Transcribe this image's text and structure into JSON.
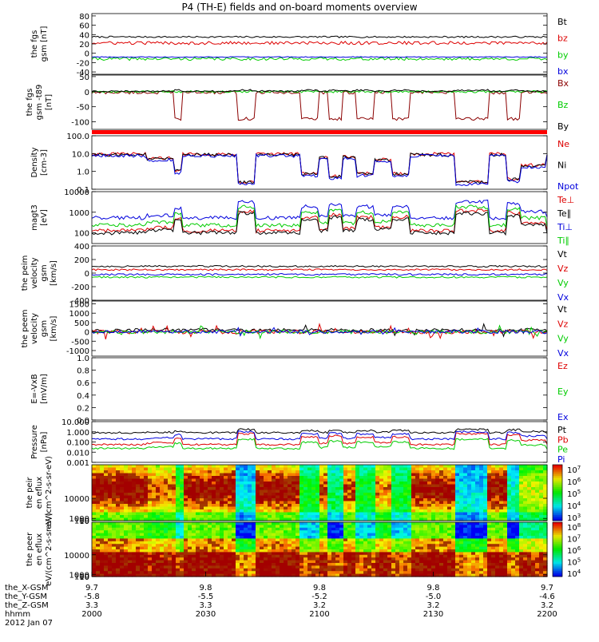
{
  "title": "P4 (TH-E) fields and on-board moments overview",
  "date": "2012 Jan 07",
  "colors": {
    "black": "#000000",
    "red": "#dd0000",
    "green": "#00cc00",
    "blue": "#0000dd",
    "darkred": "#8b0000"
  },
  "chart_data": [
    {
      "type": "line",
      "ylabel": "the fgs gsm [nT]",
      "ylim": [
        -45,
        85
      ],
      "yticks": [
        80,
        60,
        40,
        20,
        0,
        -20,
        -40
      ],
      "series": [
        {
          "name": "Bt",
          "color": "#000000",
          "level": 35,
          "lo": 18,
          "hi": 60
        },
        {
          "name": "bz",
          "color": "#dd0000",
          "level": 22,
          "lo": -35,
          "hi": 50
        },
        {
          "name": "by",
          "color": "#00cc00",
          "level": -12,
          "lo": -35,
          "hi": 45
        },
        {
          "name": "bx",
          "color": "#0000dd",
          "level": -8,
          "lo": -15,
          "hi": 5
        }
      ]
    },
    {
      "type": "line",
      "ylabel": "the fgs gsm -t89 [nT]",
      "ylim": [
        -125,
        55
      ],
      "yticks": [
        50,
        0,
        -50,
        -100
      ],
      "series": [
        {
          "name": "Bx",
          "color": "#8b0000",
          "level": -10,
          "lo": -100,
          "hi": 25
        },
        {
          "name": "Bz",
          "color": "#00cc00",
          "level": 0,
          "lo": -45,
          "hi": 40
        },
        {
          "name": "By",
          "color": "#000000",
          "level": 5,
          "lo": -30,
          "hi": 35
        }
      ]
    },
    {
      "type": "line",
      "log": true,
      "ylabel": "Density [cm-3]",
      "ylim": [
        0.1,
        100
      ],
      "yticks": [
        100.0,
        10.0,
        1.0,
        0.1
      ],
      "ytick_labels": [
        "100.0",
        "10.0",
        "1.0",
        "0.1"
      ],
      "series": [
        {
          "name": "Ne",
          "color": "#dd0000",
          "level": 10,
          "lo": 0.2,
          "hi": 25
        },
        {
          "name": "Ni",
          "color": "#000000",
          "level": 9,
          "lo": 0.2,
          "hi": 22
        },
        {
          "name": "Npot",
          "color": "#0000dd",
          "level": 8,
          "lo": 0.15,
          "hi": 20
        }
      ]
    },
    {
      "type": "line",
      "log": true,
      "ylabel": "magt3 [eV]",
      "ylim": [
        30,
        10000
      ],
      "yticks": [
        10000,
        1000,
        100
      ],
      "ytick_labels": [
        "10000",
        "1000",
        "100"
      ],
      "series": [
        {
          "name": "Te⊥",
          "color": "#dd0000",
          "level": 80,
          "lo": 50,
          "hi": 2000
        },
        {
          "name": "Te∥",
          "color": "#000000",
          "level": 60,
          "lo": 40,
          "hi": 1500
        },
        {
          "name": "Ti⊥",
          "color": "#0000dd",
          "level": 400,
          "lo": 250,
          "hi": 5000
        },
        {
          "name": "Ti∥",
          "color": "#00cc00",
          "level": 150,
          "lo": 100,
          "hi": 3000
        }
      ]
    },
    {
      "type": "line",
      "ylabel": "the peim velocity gsm [km/s]",
      "ylim": [
        -400,
        400
      ],
      "yticks": [
        400,
        200,
        0,
        -200,
        -400
      ],
      "series": [
        {
          "name": "Vt",
          "color": "#000000",
          "level": 100,
          "lo": 30,
          "hi": 350
        },
        {
          "name": "Vz",
          "color": "#dd0000",
          "level": 50,
          "lo": -100,
          "hi": 200
        },
        {
          "name": "Vy",
          "color": "#00cc00",
          "level": -60,
          "lo": -200,
          "hi": 100
        },
        {
          "name": "Vx",
          "color": "#0000dd",
          "level": -20,
          "lo": -200,
          "hi": 150
        }
      ]
    },
    {
      "type": "line",
      "ylabel": "the peem velocity gsm [km/s]",
      "ylim": [
        -1300,
        1650
      ],
      "yticks": [
        1500,
        1000,
        500,
        0,
        -500,
        -1000
      ],
      "series": [
        {
          "name": "Vt",
          "color": "#000000",
          "level": 100,
          "lo": 0,
          "hi": 1500
        },
        {
          "name": "Vz",
          "color": "#dd0000",
          "level": 0,
          "lo": -1000,
          "hi": 800
        },
        {
          "name": "Vy",
          "color": "#00cc00",
          "level": 0,
          "lo": -1000,
          "hi": 600
        },
        {
          "name": "Vx",
          "color": "#0000dd",
          "level": 0,
          "lo": -800,
          "hi": 600
        }
      ]
    },
    {
      "type": "line",
      "ylabel": "E=-VxB [mV/m]",
      "ylim": [
        0,
        1.0
      ],
      "yticks": [
        1.0,
        0.8,
        0.6,
        0.4,
        0.2,
        0.0
      ],
      "ytick_labels": [
        "1.0",
        "0.8",
        "0.6",
        "0.4",
        "0.2",
        "0.0"
      ],
      "series": [
        {
          "name": "Ez",
          "color": "#dd0000"
        },
        {
          "name": "Ey",
          "color": "#00cc00"
        },
        {
          "name": "Ex",
          "color": "#0000dd"
        }
      ]
    },
    {
      "type": "line",
      "log": true,
      "ylabel": "Pressure [nPa]",
      "ylim": [
        0.001,
        10
      ],
      "yticks": [
        10,
        1,
        0.1,
        0.01,
        0.001
      ],
      "ytick_labels": [
        "10.000",
        "1.000",
        "0.100",
        "0.010",
        "0.001"
      ],
      "series": [
        {
          "name": "Pt",
          "color": "#000000",
          "level": 1.0,
          "lo": 0.6,
          "hi": 2.0
        },
        {
          "name": "Pb",
          "color": "#dd0000",
          "level": 0.5,
          "lo": 0.02,
          "hi": 1.2
        },
        {
          "name": "Pe",
          "color": "#00cc00",
          "level": 0.05,
          "lo": 0.01,
          "hi": 0.3
        },
        {
          "name": "Pi",
          "color": "#0000dd",
          "level": 0.3,
          "lo": 0.1,
          "hi": 1.5
        }
      ]
    },
    {
      "type": "heatmap",
      "ylabel": "the peir en eflux eV/(cm^2-s-sr-eV)",
      "ylim": [
        8,
        25000
      ],
      "yticks": [
        10000,
        1000,
        100,
        10
      ],
      "ytick_labels": [
        "10000",
        "1000",
        "100",
        "10"
      ],
      "colorbar": {
        "min_exp": 3,
        "max_exp": 7
      }
    },
    {
      "type": "heatmap",
      "ylabel": "the peer en eflux eV/(cm^2-s-sr-eV)",
      "ylim": [
        8,
        25000
      ],
      "yticks": [
        10000,
        1000,
        100,
        10
      ],
      "ytick_labels": [
        "10000",
        "1000",
        "100",
        "10"
      ],
      "colorbar": {
        "min_exp": 4,
        "max_exp": 8
      }
    }
  ],
  "footer": {
    "row_labels": [
      "the_X-GSM",
      "the_Y-GSM",
      "the_Z-GSM",
      "hhmm"
    ],
    "columns": [
      [
        "9.7",
        "-5.8",
        "3.3",
        "2000"
      ],
      [
        "9.8",
        "-5.5",
        "3.3",
        "2030"
      ],
      [
        "9.8",
        "-5.2",
        "3.2",
        "2100"
      ],
      [
        "9.8",
        "-5.0",
        "3.2",
        "2130"
      ],
      [
        "9.7",
        "-4.6",
        "3.2",
        "2200"
      ]
    ]
  }
}
